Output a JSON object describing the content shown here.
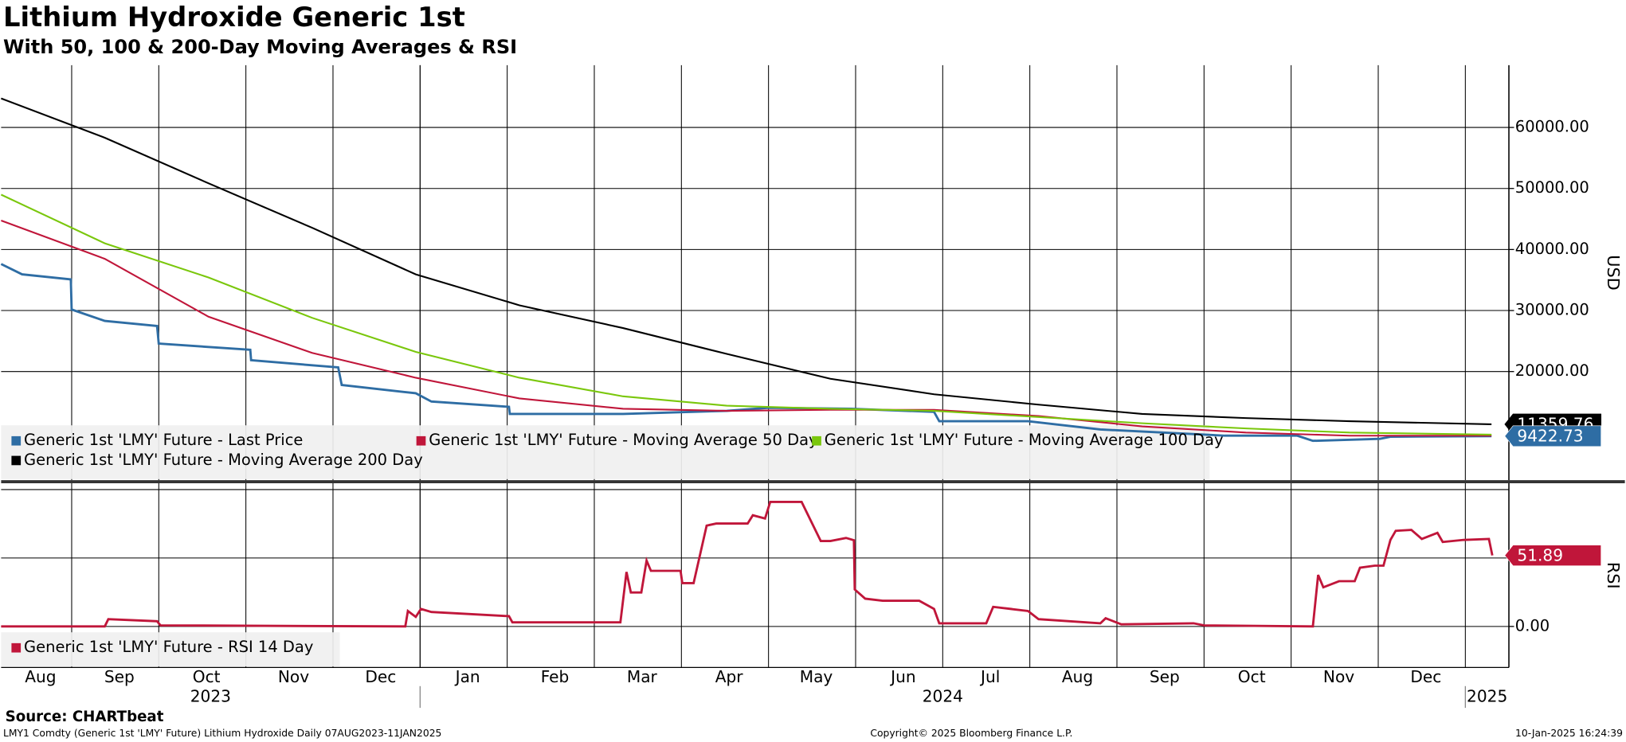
{
  "title": "Lithium Hydroxide Generic 1st",
  "subtitle": "With 50, 100 & 200-Day Moving Averages & RSI",
  "source": "Source: CHARTbeat",
  "footer": {
    "left": "LMY1 Comdty (Generic 1st 'LMY' Future) Lithium Hydroxide  Daily 07AUG2023-11JAN2025",
    "center": "Copyright© 2025 Bloomberg Finance L.P.",
    "right": "10-Jan-2025 16:24:39"
  },
  "chart_data": [
    {
      "type": "line",
      "ylabel": "USD",
      "ylim": [
        2200,
        70200
      ],
      "yticks": [
        {
          "value": 20000,
          "label": "20000.00"
        },
        {
          "value": 30000,
          "label": "30000.00"
        },
        {
          "value": 40000,
          "label": "40000.00"
        },
        {
          "value": 50000,
          "label": "50000.00"
        },
        {
          "value": 60000,
          "label": "60000.00"
        }
      ],
      "grid": true,
      "legend": "bottom-left",
      "series": [
        {
          "name": "Generic 1st 'LMY' Future - Last Price",
          "color": "#2e6da4",
          "tag": true,
          "x": [
            0.19,
            0.43,
            0.99,
            1.0,
            1.38,
            1.98,
            2.0,
            3.05,
            3.06,
            4.06,
            4.1,
            4.95,
            5.13,
            6.02,
            6.03,
            7.33,
            8.52,
            9.0,
            9.95,
            10.9,
            10.96,
            11.98,
            12.81,
            14.24,
            15.07,
            15.25,
            16.02,
            16.14,
            17.3
          ],
          "values": [
            37630,
            35930,
            35090,
            30170,
            28300,
            27460,
            24580,
            23560,
            21860,
            20680,
            17800,
            16440,
            15080,
            14230,
            13050,
            13050,
            13560,
            14070,
            13900,
            13390,
            11860,
            11860,
            10510,
            9490,
            9490,
            8640,
            8980,
            9320,
            9422.73
          ]
        },
        {
          "name": "Generic 1st 'LMY' Future - Moving Average 50 Day",
          "color": "#c0163a",
          "tag": false,
          "x": [
            0.19,
            1.38,
            2.57,
            3.76,
            4.95,
            6.14,
            7.33,
            8.52,
            9.71,
            10.9,
            12.1,
            13.29,
            14.48,
            15.67,
            17.3
          ],
          "values": [
            44750,
            38480,
            28990,
            23050,
            18980,
            15590,
            13900,
            13560,
            13730,
            13730,
            12710,
            11020,
            10000,
            9490,
            9490
          ]
        },
        {
          "name": "Generic 1st 'LMY' Future - Moving Average 100 Day",
          "color": "#7ac70c",
          "tag": false,
          "x": [
            0.19,
            1.38,
            2.57,
            3.76,
            4.95,
            6.14,
            7.33,
            8.52,
            9.71,
            10.9,
            12.1,
            13.29,
            14.48,
            15.67,
            17.3
          ],
          "values": [
            48980,
            41020,
            35420,
            28810,
            23220,
            18980,
            15930,
            14410,
            13900,
            13560,
            12540,
            11530,
            10680,
            10000,
            9660
          ]
        },
        {
          "name": "Generic 1st 'LMY' Future - Moving Average 200 Day",
          "color": "#000000",
          "tag": true,
          "x": [
            0.19,
            1.38,
            2.57,
            3.76,
            4.95,
            6.14,
            7.33,
            8.52,
            9.71,
            10.9,
            12.1,
            13.29,
            14.48,
            15.67,
            17.3
          ],
          "values": [
            64750,
            58310,
            50850,
            43560,
            35930,
            30850,
            27120,
            22880,
            18810,
            16270,
            14580,
            13050,
            12370,
            11860,
            11359.76
          ]
        }
      ]
    },
    {
      "type": "line",
      "ylabel": "RSI",
      "xlim": [
        0.19,
        17.5
      ],
      "xticks": [
        {
          "value": 0,
          "label": "Aug"
        },
        {
          "value": 1,
          "label": "Sep"
        },
        {
          "value": 2,
          "label": "Oct"
        },
        {
          "value": 3,
          "label": "Nov"
        },
        {
          "value": 4,
          "label": "Dec"
        },
        {
          "value": 5,
          "label": "Jan"
        },
        {
          "value": 6,
          "label": "Feb"
        },
        {
          "value": 7,
          "label": "Mar"
        },
        {
          "value": 8,
          "label": "Apr"
        },
        {
          "value": 9,
          "label": "May"
        },
        {
          "value": 10,
          "label": "Jun"
        },
        {
          "value": 11,
          "label": "Jul"
        },
        {
          "value": 12,
          "label": "Aug"
        },
        {
          "value": 13,
          "label": "Sep"
        },
        {
          "value": 14,
          "label": "Oct"
        },
        {
          "value": 15,
          "label": "Nov"
        },
        {
          "value": 16,
          "label": "Dec"
        }
      ],
      "years": [
        {
          "value": 0,
          "label": "2023"
        },
        {
          "value": 5,
          "label": "2024"
        },
        {
          "value": 17,
          "label": "2025"
        }
      ],
      "ylim": [
        -30,
        104.6
      ],
      "yticks": [
        {
          "value": 0,
          "label": "0.00"
        }
      ],
      "ygrid": [
        50,
        100
      ],
      "grid": true,
      "legend": "bottom-left",
      "series": [
        {
          "name": "Generic 1st 'LMY' Future - RSI 14 Day",
          "color": "#c0163a",
          "tag": true,
          "x": [
            0.19,
            1.38,
            1.42,
            1.98,
            2.02,
            4.83,
            4.86,
            4.95,
            5.01,
            5.13,
            6.02,
            6.06,
            7.3,
            7.37,
            7.42,
            7.54,
            7.6,
            7.65,
            7.99,
            8.01,
            8.14,
            8.29,
            8.4,
            8.76,
            8.82,
            8.96,
            9.02,
            9.38,
            9.6,
            9.71,
            9.89,
            9.98,
            9.99,
            10.11,
            10.31,
            10.73,
            10.9,
            10.96,
            11.5,
            11.58,
            11.98,
            12.1,
            12.81,
            12.87,
            13.05,
            13.88,
            14.0,
            15.25,
            15.31,
            15.37,
            15.55,
            15.73,
            15.79,
            15.96,
            16.06,
            16.14,
            16.2,
            16.38,
            16.5,
            16.68,
            16.74,
            16.98,
            17.27,
            17.31
          ],
          "values": [
            0,
            0,
            5.3,
            3.8,
            0.8,
            0,
            11.3,
            7,
            12.8,
            10.5,
            7.5,
            3,
            3,
            39.8,
            24.8,
            24.8,
            48.1,
            40.6,
            40.6,
            31.6,
            31.6,
            73.7,
            75.2,
            75.2,
            81.2,
            78.9,
            91,
            91,
            62.4,
            62.4,
            64.7,
            63,
            27,
            20.3,
            18.8,
            18.8,
            12.8,
            2.3,
            2.3,
            14.3,
            11.3,
            5.3,
            2.3,
            6,
            1.5,
            2.3,
            0.8,
            0,
            37.6,
            28.6,
            33.1,
            33.1,
            42.9,
            44.4,
            44.4,
            63.2,
            69.9,
            70.6,
            63.9,
            68.4,
            61.7,
            63.2,
            63.9,
            51.89
          ]
        }
      ]
    }
  ]
}
